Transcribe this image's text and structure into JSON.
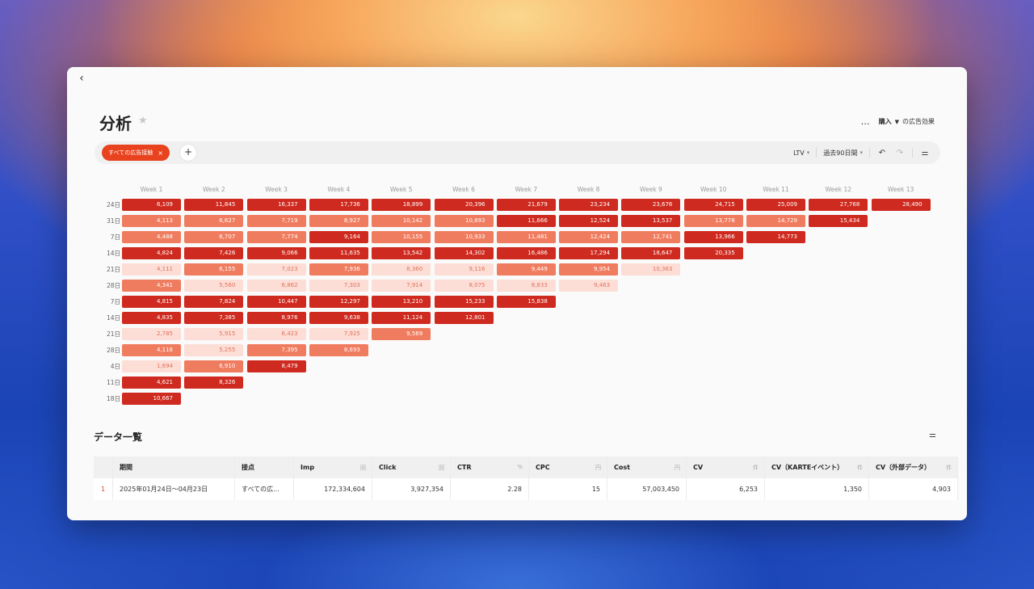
{
  "window": {
    "back_icon": "chevron-left-icon",
    "title": "分析",
    "star_icon": "star-icon"
  },
  "header": {
    "more": "…",
    "metric_label": "購入",
    "suffix": "の広告効果"
  },
  "filter": {
    "chip_label": "すべての広告接触",
    "chip_remove": "×",
    "add": "+",
    "lens": "LTV",
    "period": "過去90日間",
    "undo_icon": "undo-icon",
    "redo_icon": "redo-icon",
    "settings_icon": "sliders-icon"
  },
  "cohort": {
    "columns": [
      "Week 1",
      "Week 2",
      "Week 3",
      "Week 4",
      "Week 5",
      "Week 6",
      "Week 7",
      "Week 8",
      "Week 9",
      "Week 10",
      "Week 11",
      "Week 12",
      "Week 13"
    ],
    "rows": [
      {
        "label": "24日",
        "cells": [
          [
            "6,109",
            4
          ],
          [
            "11,845",
            4
          ],
          [
            "16,337",
            4
          ],
          [
            "17,736",
            4
          ],
          [
            "18,899",
            4
          ],
          [
            "20,396",
            4
          ],
          [
            "21,679",
            4
          ],
          [
            "23,234",
            4
          ],
          [
            "23,676",
            4
          ],
          [
            "24,715",
            4
          ],
          [
            "25,009",
            4
          ],
          [
            "27,768",
            4
          ],
          [
            "28,490",
            4
          ]
        ]
      },
      {
        "label": "31日",
        "cells": [
          [
            "4,113",
            2
          ],
          [
            "6,627",
            2
          ],
          [
            "7,719",
            2
          ],
          [
            "8,927",
            2
          ],
          [
            "10,142",
            2
          ],
          [
            "10,893",
            2
          ],
          [
            "11,666",
            4
          ],
          [
            "12,524",
            4
          ],
          [
            "13,537",
            4
          ],
          [
            "13,778",
            2
          ],
          [
            "14,729",
            2
          ],
          [
            "15,434",
            4
          ]
        ]
      },
      {
        "label": "7日",
        "cells": [
          [
            "4,488",
            2
          ],
          [
            "6,707",
            2
          ],
          [
            "7,774",
            2
          ],
          [
            "9,164",
            4
          ],
          [
            "10,155",
            2
          ],
          [
            "10,933",
            2
          ],
          [
            "11,481",
            2
          ],
          [
            "12,424",
            2
          ],
          [
            "12,741",
            2
          ],
          [
            "13,966",
            4
          ],
          [
            "14,773",
            4
          ]
        ]
      },
      {
        "label": "14日",
        "cells": [
          [
            "4,824",
            4
          ],
          [
            "7,426",
            4
          ],
          [
            "9,066",
            4
          ],
          [
            "11,635",
            4
          ],
          [
            "13,542",
            4
          ],
          [
            "14,302",
            4
          ],
          [
            "16,486",
            4
          ],
          [
            "17,294",
            4
          ],
          [
            "18,647",
            4
          ],
          [
            "20,335",
            4
          ]
        ]
      },
      {
        "label": "21日",
        "cells": [
          [
            "4,111",
            1
          ],
          [
            "6,155",
            2
          ],
          [
            "7,023",
            1
          ],
          [
            "7,936",
            2
          ],
          [
            "8,360",
            1
          ],
          [
            "9,116",
            1
          ],
          [
            "9,449",
            2
          ],
          [
            "9,954",
            2
          ],
          [
            "10,363",
            1
          ]
        ]
      },
      {
        "label": "28日",
        "cells": [
          [
            "4,341",
            2
          ],
          [
            "5,560",
            1
          ],
          [
            "6,862",
            1
          ],
          [
            "7,303",
            1
          ],
          [
            "7,914",
            1
          ],
          [
            "8,075",
            1
          ],
          [
            "8,833",
            1
          ],
          [
            "9,463",
            1
          ]
        ]
      },
      {
        "label": "7日",
        "cells": [
          [
            "4,815",
            4
          ],
          [
            "7,824",
            4
          ],
          [
            "10,447",
            4
          ],
          [
            "12,297",
            4
          ],
          [
            "13,210",
            4
          ],
          [
            "15,233",
            4
          ],
          [
            "15,838",
            4
          ]
        ]
      },
      {
        "label": "14日",
        "cells": [
          [
            "4,835",
            4
          ],
          [
            "7,385",
            4
          ],
          [
            "8,976",
            4
          ],
          [
            "9,638",
            4
          ],
          [
            "11,124",
            4
          ],
          [
            "12,801",
            4
          ]
        ]
      },
      {
        "label": "21日",
        "cells": [
          [
            "2,785",
            1
          ],
          [
            "5,915",
            1
          ],
          [
            "6,423",
            1
          ],
          [
            "7,925",
            1
          ],
          [
            "9,569",
            2
          ]
        ]
      },
      {
        "label": "28日",
        "cells": [
          [
            "4,118",
            2
          ],
          [
            "5,255",
            1
          ],
          [
            "7,395",
            2
          ],
          [
            "8,693",
            2
          ]
        ]
      },
      {
        "label": "4日",
        "cells": [
          [
            "1,694",
            1
          ],
          [
            "6,910",
            2
          ],
          [
            "8,479",
            4
          ]
        ]
      },
      {
        "label": "11日",
        "cells": [
          [
            "4,621",
            4
          ],
          [
            "8,326",
            4
          ]
        ]
      },
      {
        "label": "18日",
        "cells": [
          [
            "10,667",
            4
          ]
        ]
      }
    ]
  },
  "data_section": {
    "title": "データ一覧",
    "settings_icon": "sliders-icon"
  },
  "table": {
    "headers": [
      {
        "label": "",
        "unit": ""
      },
      {
        "label": "期間",
        "unit": ""
      },
      {
        "label": "接点",
        "unit": ""
      },
      {
        "label": "Imp",
        "unit": "回"
      },
      {
        "label": "Click",
        "unit": "回"
      },
      {
        "label": "CTR",
        "unit": "%"
      },
      {
        "label": "CPC",
        "unit": "円"
      },
      {
        "label": "Cost",
        "unit": "円"
      },
      {
        "label": "CV",
        "unit": "件"
      },
      {
        "label": "CV（KARTEイベント）",
        "unit": "件"
      },
      {
        "label": "CV（外部データ）",
        "unit": "件"
      }
    ],
    "rows": [
      [
        "1",
        "2025年01月24日〜04月23日",
        "すべての広...",
        "172,334,604",
        "3,927,354",
        "2.28",
        "15",
        "57,003,450",
        "6,253",
        "1,350",
        "4,903"
      ]
    ]
  }
}
